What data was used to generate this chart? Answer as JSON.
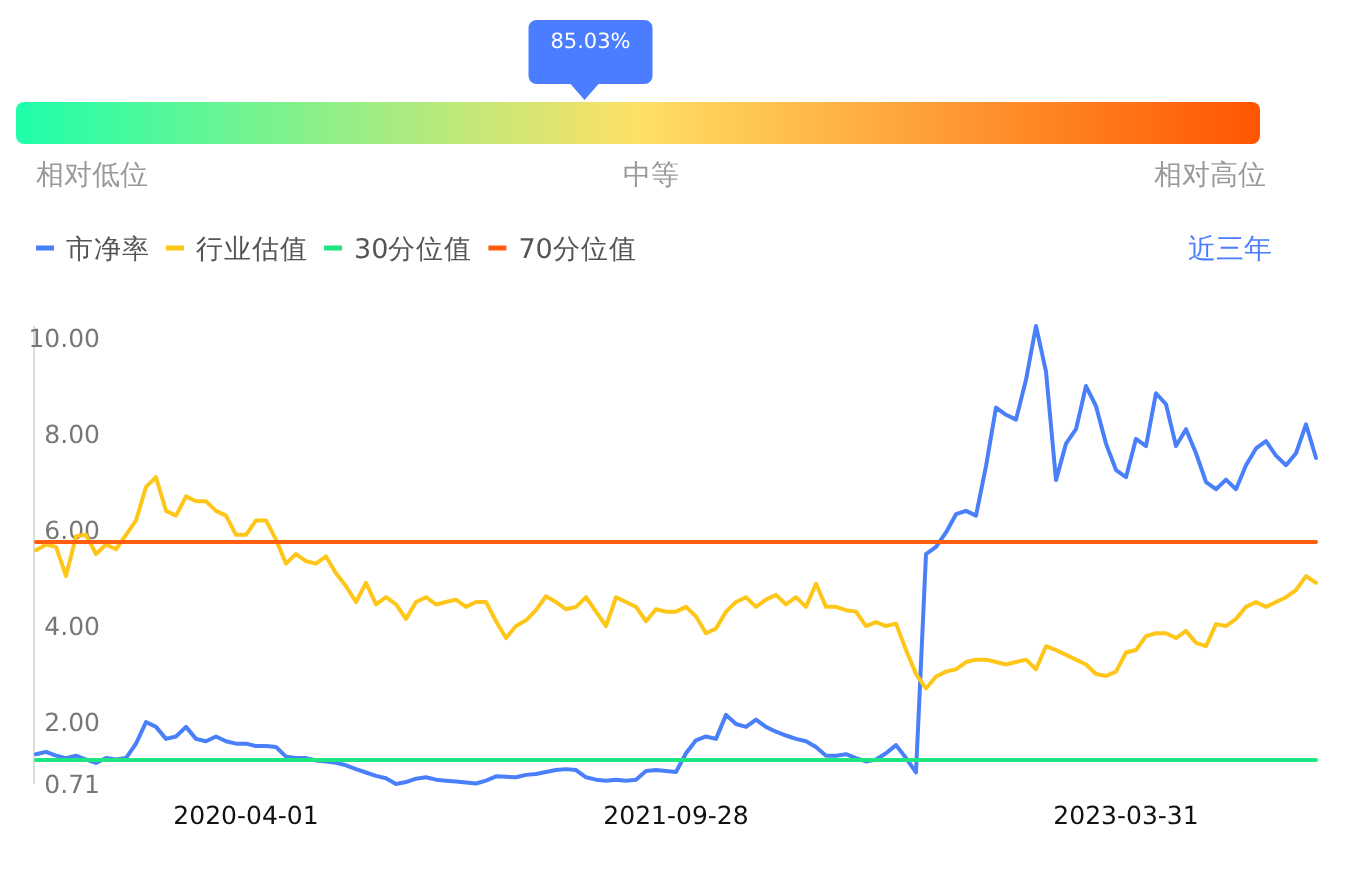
{
  "chart_data": [
    {
      "type": "other",
      "categories": [
        "相对低位",
        "中等",
        "相对高位"
      ],
      "colors": [
        "#1effaa",
        "#ffe066",
        "#ff5500"
      ],
      "annotations": [
        "85.03%"
      ]
    },
    {
      "type": "line",
      "categories": [
        null,
        null,
        null,
        null,
        null,
        null,
        null,
        null,
        null,
        null,
        null,
        null,
        null,
        null,
        null,
        null,
        null,
        null,
        null,
        null,
        null,
        "2020-04-01",
        null,
        null,
        null,
        null,
        null,
        null,
        null,
        null,
        null,
        null,
        null,
        null,
        null,
        null,
        null,
        null,
        null,
        null,
        null,
        null,
        null,
        null,
        null,
        null,
        null,
        null,
        null,
        null,
        null,
        null,
        null,
        null,
        null,
        null,
        null,
        null,
        null,
        null,
        null,
        null,
        null,
        null,
        "2021-09-28",
        null,
        null,
        null,
        null,
        null,
        null,
        null,
        null,
        null,
        null,
        null,
        null,
        null,
        null,
        null,
        null,
        null,
        null,
        null,
        null,
        null,
        null,
        null,
        null,
        null,
        null,
        null,
        null,
        null,
        null,
        null,
        null,
        null,
        null,
        null,
        null,
        null,
        null,
        null,
        null,
        null,
        null,
        null,
        null,
        "2023-03-31",
        null,
        null,
        null,
        null,
        null,
        null,
        null,
        null,
        null,
        null,
        null,
        null,
        null,
        null,
        null,
        null,
        null,
        null,
        null
      ],
      "series": [
        {
          "name": "市净率",
          "color": "#4a7ffa",
          "values": [
            1.33,
            1.38,
            1.3,
            1.25,
            1.3,
            1.22,
            1.15,
            1.25,
            1.22,
            1.25,
            1.55,
            2.0,
            1.9,
            1.65,
            1.7,
            1.9,
            1.65,
            1.6,
            1.7,
            1.6,
            1.55,
            1.55,
            1.5,
            1.5,
            1.48,
            1.28,
            1.25,
            1.25,
            1.2,
            1.18,
            1.15,
            1.1,
            1.02,
            0.95,
            0.88,
            0.83,
            0.71,
            0.75,
            0.82,
            0.85,
            0.8,
            0.78,
            0.76,
            0.74,
            0.72,
            0.78,
            0.87,
            0.86,
            0.85,
            0.9,
            0.92,
            0.96,
            1.0,
            1.02,
            1.0,
            0.85,
            0.8,
            0.78,
            0.8,
            0.78,
            0.8,
            0.98,
            1.0,
            0.98,
            0.96,
            1.35,
            1.62,
            1.7,
            1.65,
            2.15,
            1.96,
            1.9,
            2.05,
            1.9,
            1.8,
            1.72,
            1.65,
            1.6,
            1.48,
            1.3,
            1.3,
            1.33,
            1.25,
            1.18,
            1.22,
            1.35,
            1.52,
            1.25,
            0.95,
            5.5,
            5.65,
            5.95,
            6.33,
            6.4,
            6.3,
            7.33,
            8.55,
            8.4,
            8.3,
            9.13,
            10.25,
            9.3,
            7.04,
            7.8,
            8.1,
            9.0,
            8.58,
            7.8,
            7.25,
            7.1,
            7.9,
            7.75,
            8.85,
            8.62,
            7.75,
            8.1,
            7.6,
            7.0,
            6.85,
            7.05,
            6.85,
            7.35,
            7.7,
            7.85,
            7.55,
            7.35,
            7.6,
            8.2,
            7.5
          ]
        },
        {
          "name": "行业估值",
          "color": "#ffc61a",
          "values": [
            5.58,
            5.7,
            5.65,
            5.04,
            5.87,
            5.9,
            5.5,
            5.7,
            5.6,
            5.9,
            6.2,
            6.9,
            7.1,
            6.4,
            6.3,
            6.7,
            6.6,
            6.6,
            6.4,
            6.3,
            5.9,
            5.9,
            6.2,
            6.2,
            5.8,
            5.3,
            5.5,
            5.35,
            5.3,
            5.45,
            5.1,
            4.83,
            4.5,
            4.9,
            4.45,
            4.6,
            4.45,
            4.15,
            4.5,
            4.6,
            4.45,
            4.5,
            4.55,
            4.4,
            4.5,
            4.5,
            4.1,
            3.75,
            4.0,
            4.12,
            4.33,
            4.62,
            4.5,
            4.35,
            4.4,
            4.6,
            4.3,
            4.0,
            4.6,
            4.5,
            4.4,
            4.1,
            4.35,
            4.3,
            4.3,
            4.4,
            4.2,
            3.85,
            3.95,
            4.3,
            4.5,
            4.6,
            4.4,
            4.55,
            4.65,
            4.45,
            4.6,
            4.4,
            4.88,
            4.4,
            4.4,
            4.33,
            4.3,
            4.0,
            4.08,
            4.0,
            4.05,
            3.5,
            3.0,
            2.7,
            2.95,
            3.05,
            3.1,
            3.25,
            3.3,
            3.3,
            3.25,
            3.2,
            3.25,
            3.3,
            3.1,
            3.58,
            3.5,
            3.4,
            3.3,
            3.2,
            3.0,
            2.96,
            3.05,
            3.45,
            3.5,
            3.79,
            3.85,
            3.85,
            3.75,
            3.9,
            3.65,
            3.58,
            4.04,
            4.0,
            4.15,
            4.4,
            4.5,
            4.4,
            4.5,
            4.6,
            4.75,
            5.04,
            4.9
          ]
        },
        {
          "name": "30分位值",
          "color": "#1de57f",
          "values": [
            1.21,
            1.21,
            1.21,
            1.21,
            1.21,
            1.21,
            1.21,
            1.21,
            1.21,
            1.21,
            1.21,
            1.21,
            1.21,
            1.21,
            1.21,
            1.21,
            1.21,
            1.21,
            1.21,
            1.21,
            1.21,
            1.21,
            1.21,
            1.21,
            1.21,
            1.21,
            1.21,
            1.21,
            1.21,
            1.21,
            1.21,
            1.21,
            1.21,
            1.21,
            1.21,
            1.21,
            1.21,
            1.21,
            1.21,
            1.21,
            1.21,
            1.21,
            1.21,
            1.21,
            1.21,
            1.21,
            1.21,
            1.21,
            1.21,
            1.21,
            1.21,
            1.21,
            1.21,
            1.21,
            1.21,
            1.21,
            1.21,
            1.21,
            1.21,
            1.21,
            1.21,
            1.21,
            1.21,
            1.21,
            1.21,
            1.21,
            1.21,
            1.21,
            1.21,
            1.21,
            1.21,
            1.21,
            1.21,
            1.21,
            1.21,
            1.21,
            1.21,
            1.21,
            1.21,
            1.21,
            1.21,
            1.21,
            1.21,
            1.21,
            1.21,
            1.21,
            1.21,
            1.21,
            1.21,
            1.21,
            1.21,
            1.21,
            1.21,
            1.21,
            1.21,
            1.21,
            1.21,
            1.21,
            1.21,
            1.21,
            1.21,
            1.21,
            1.21,
            1.21,
            1.21,
            1.21,
            1.21,
            1.21,
            1.21,
            1.21,
            1.21,
            1.21,
            1.21,
            1.21,
            1.21,
            1.21,
            1.21,
            1.21,
            1.21,
            1.21,
            1.21,
            1.21,
            1.21,
            1.21,
            1.21,
            1.21,
            1.21,
            1.21,
            1.21
          ]
        },
        {
          "name": "70分位值",
          "color": "#ff5d0f",
          "values": [
            5.75,
            5.75,
            5.75,
            5.75,
            5.75,
            5.75,
            5.75,
            5.75,
            5.75,
            5.75,
            5.75,
            5.75,
            5.75,
            5.75,
            5.75,
            5.75,
            5.75,
            5.75,
            5.75,
            5.75,
            5.75,
            5.75,
            5.75,
            5.75,
            5.75,
            5.75,
            5.75,
            5.75,
            5.75,
            5.75,
            5.75,
            5.75,
            5.75,
            5.75,
            5.75,
            5.75,
            5.75,
            5.75,
            5.75,
            5.75,
            5.75,
            5.75,
            5.75,
            5.75,
            5.75,
            5.75,
            5.75,
            5.75,
            5.75,
            5.75,
            5.75,
            5.75,
            5.75,
            5.75,
            5.75,
            5.75,
            5.75,
            5.75,
            5.75,
            5.75,
            5.75,
            5.75,
            5.75,
            5.75,
            5.75,
            5.75,
            5.75,
            5.75,
            5.75,
            5.75,
            5.75,
            5.75,
            5.75,
            5.75,
            5.75,
            5.75,
            5.75,
            5.75,
            5.75,
            5.75,
            5.75,
            5.75,
            5.75,
            5.75,
            5.75,
            5.75,
            5.75,
            5.75,
            5.75,
            5.75,
            5.75,
            5.75,
            5.75,
            5.75,
            5.75,
            5.75,
            5.75,
            5.75,
            5.75,
            5.75,
            5.75,
            5.75,
            5.75,
            5.75,
            5.75,
            5.75,
            5.75,
            5.75,
            5.75,
            5.75,
            5.75,
            5.75,
            5.75,
            5.75,
            5.75,
            5.75,
            5.75,
            5.75,
            5.75,
            5.75,
            5.75,
            5.75,
            5.75,
            5.75,
            5.75,
            5.75,
            5.75,
            5.75,
            5.75
          ]
        }
      ],
      "ylim": [
        0.71,
        10.25
      ],
      "yticks": [
        0.71,
        {
          "value": 2,
          "label": "2.00"
        },
        {
          "value": 4,
          "label": "4.00"
        },
        {
          "value": 6,
          "label": "6.00"
        },
        {
          "value": 8,
          "label": "8.00"
        },
        {
          "value": 10,
          "label": "10.00"
        }
      ],
      "legend": "top left",
      "annotations": [
        "近三年"
      ]
    }
  ]
}
